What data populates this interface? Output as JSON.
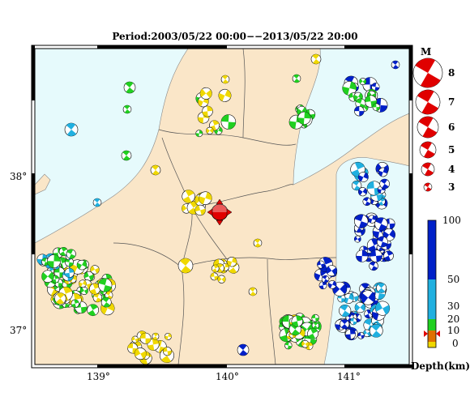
{
  "title": "Period:2003/05/22 00:00−−2013/05/22 20:00",
  "map": {
    "lat_ticks": [
      "38°",
      "37°"
    ],
    "lon_ticks": [
      "139°",
      "140°",
      "141°"
    ]
  },
  "legend_m": {
    "title": "M",
    "labels": [
      "8",
      "7",
      "6",
      "5",
      "4",
      "3"
    ]
  },
  "depth_scale": {
    "label": "Depth(km)",
    "ticks": [
      "100",
      "50",
      "30",
      "20",
      "10",
      "0"
    ],
    "colors": {
      "0-10": "#f0d800",
      "10-20": "#e07000",
      "20-30": "#20d020",
      "30-50": "#20b0e0",
      "50-100": "#0020c8"
    }
  },
  "colors": {
    "land": "#fae6c8",
    "sea": "#e6fafc",
    "mainshock": "#e00000"
  }
}
